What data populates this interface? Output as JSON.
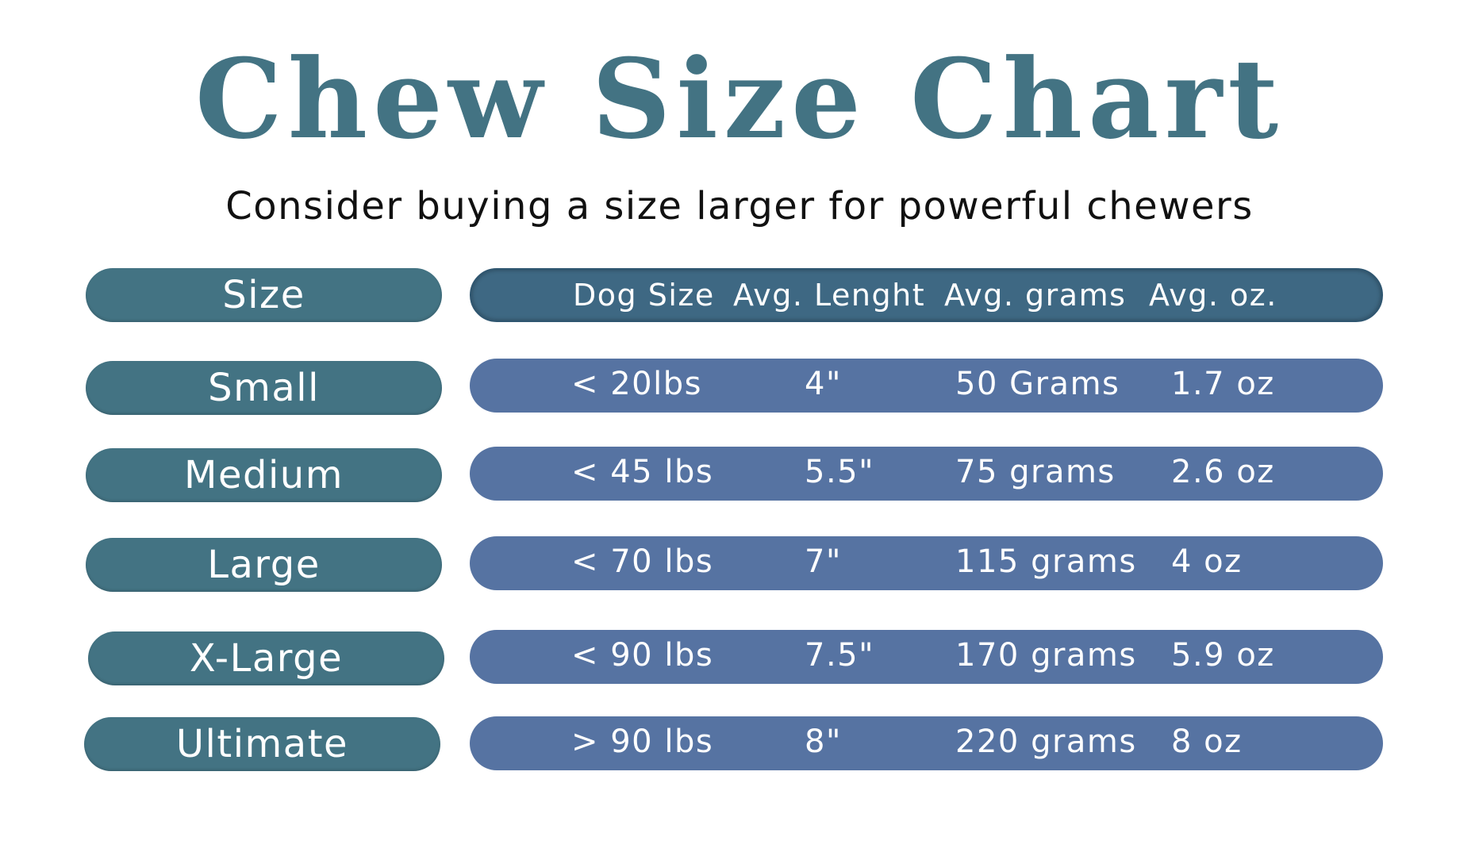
{
  "title": "Chew Size Chart",
  "subtitle": "Consider buying a size larger for powerful chewers",
  "colors": {
    "title": "#437383",
    "size_pill": "#437383",
    "header_pill": "#3e6883",
    "row_pill": "#5673a2"
  },
  "header": {
    "size_label": "Size",
    "columns": [
      "Dog Size",
      "Avg. Lenght",
      "Avg. grams",
      "Avg. oz."
    ]
  },
  "rows": [
    {
      "size": "Small",
      "dog_size": "< 20lbs",
      "length": "4\"",
      "grams": "50 Grams",
      "oz": "1.7 oz"
    },
    {
      "size": "Medium",
      "dog_size": "< 45 lbs",
      "length": "5.5\"",
      "grams": "75 grams",
      "oz": "2.6 oz"
    },
    {
      "size": "Large",
      "dog_size": "< 70 lbs",
      "length": "7\"",
      "grams": "115 grams",
      "oz": "4 oz"
    },
    {
      "size": "X-Large",
      "dog_size": "< 90 lbs",
      "length": "7.5\"",
      "grams": "170 grams",
      "oz": "5.9 oz"
    },
    {
      "size": "Ultimate",
      "dog_size": "> 90 lbs",
      "length": "8\"",
      "grams": "220 grams",
      "oz": "8 oz"
    }
  ]
}
